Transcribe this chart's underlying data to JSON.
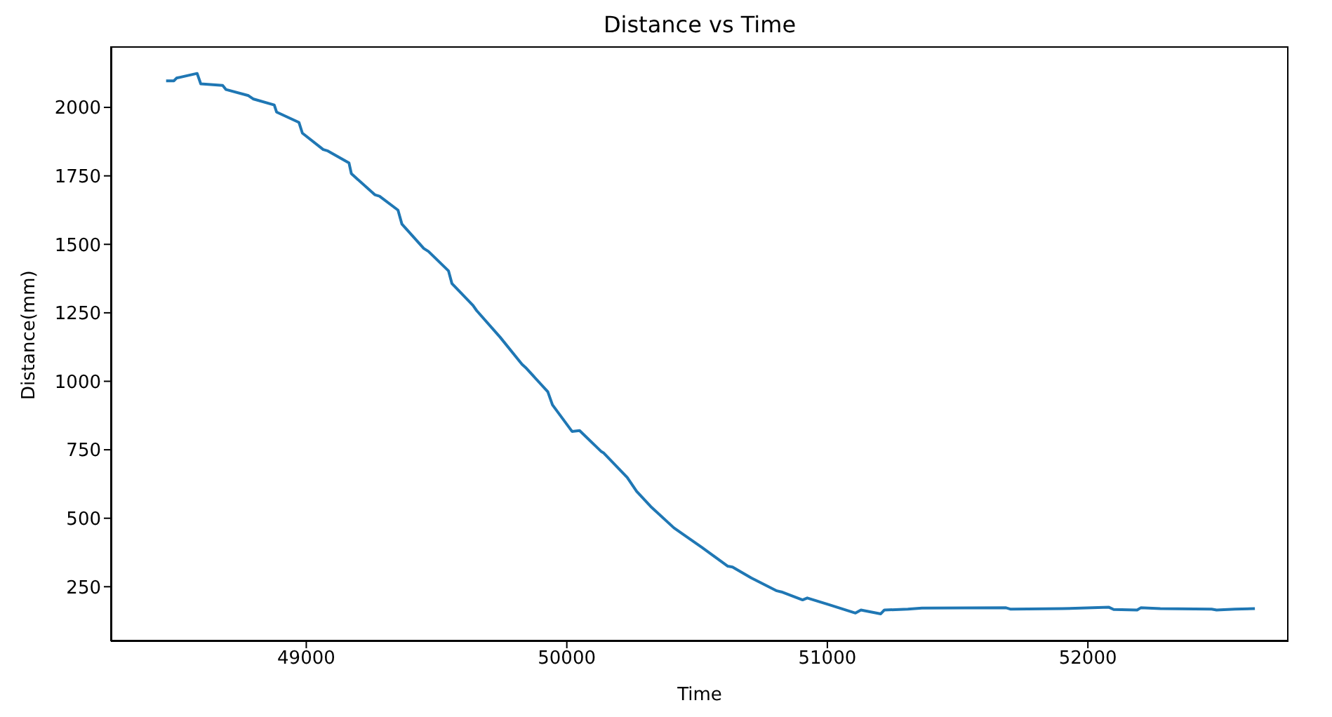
{
  "chart_data": {
    "type": "line",
    "title": "Distance vs Time",
    "xlabel": "Time",
    "ylabel": "Distance(mm)",
    "x": [
      48462,
      48492,
      48502,
      48581,
      48595,
      48679,
      48692,
      48778,
      48796,
      48877,
      48886,
      48972,
      48985,
      49065,
      49083,
      49164,
      49173,
      49263,
      49281,
      49352,
      49367,
      49451,
      49469,
      49546,
      49559,
      49640,
      49654,
      49744,
      49828,
      49842,
      49927,
      49945,
      50020,
      50049,
      50133,
      50142,
      50232,
      50268,
      50322,
      50411,
      50519,
      50618,
      50636,
      50708,
      50806,
      50824,
      50905,
      50923,
      51004,
      51108,
      51129,
      51205,
      51219,
      51309,
      51363,
      51686,
      51704,
      51901,
      52081,
      52099,
      52189,
      52203,
      52278,
      52475,
      52494,
      52565,
      52641
    ],
    "series": [
      {
        "color": "#1f77b4",
        "values": [
          2097,
          2097,
          2107,
          2124,
          2086,
          2080,
          2065,
          2043,
          2031,
          2009,
          1983,
          1945,
          1906,
          1846,
          1841,
          1797,
          1758,
          1681,
          1676,
          1625,
          1574,
          1485,
          1474,
          1403,
          1357,
          1277,
          1258,
          1161,
          1062,
          1050,
          962,
          914,
          817,
          820,
          743,
          738,
          649,
          598,
          543,
          465,
          393,
          325,
          322,
          282,
          235,
          231,
          202,
          209,
          185,
          154,
          165,
          151,
          165,
          168,
          172,
          173,
          168,
          170,
          175,
          167,
          165,
          173,
          170,
          168,
          165,
          168,
          170
        ]
      }
    ],
    "xlim": [
      48250,
      52770
    ],
    "ylim": [
      51,
      2223
    ],
    "xticks": [
      49000,
      50000,
      51000,
      52000
    ],
    "yticks": [
      250,
      500,
      750,
      1000,
      1250,
      1500,
      1750,
      2000
    ],
    "grid": false,
    "legend": false,
    "marker": "none",
    "line_style": "solid"
  }
}
